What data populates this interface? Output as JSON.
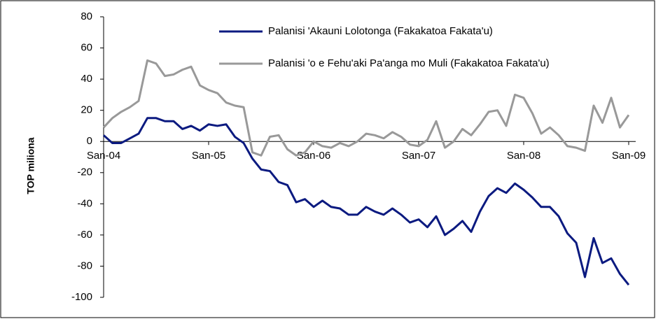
{
  "chart_data": {
    "type": "line",
    "ylabel": "TOP miliona",
    "categories": [
      "San-04",
      null,
      null,
      null,
      null,
      null,
      null,
      null,
      null,
      null,
      null,
      null,
      "San-05",
      null,
      null,
      null,
      null,
      null,
      null,
      null,
      null,
      null,
      null,
      null,
      "San-06",
      null,
      null,
      null,
      null,
      null,
      null,
      null,
      null,
      null,
      null,
      null,
      "San-07",
      null,
      null,
      null,
      null,
      null,
      null,
      null,
      null,
      null,
      null,
      null,
      "San-08",
      null,
      null,
      null,
      null,
      null,
      null,
      null,
      null,
      null,
      null,
      null,
      "San-09"
    ],
    "series": [
      {
        "name": "Palanisi 'Akauni Lolotonga (Fakakatoa Fakata'u)",
        "color": "#0b1a80",
        "values": [
          4,
          -1,
          -1,
          2,
          5,
          15,
          15,
          13,
          13,
          8,
          10,
          7,
          11,
          10,
          11,
          3,
          -1,
          -11,
          -18,
          -19,
          -26,
          -28,
          -39,
          -37,
          -42,
          -38,
          -42,
          -43,
          -47,
          -47,
          -42,
          -45,
          -47,
          -43,
          -47,
          -52,
          -50,
          -55,
          -48,
          -60,
          -56,
          -51,
          -58,
          -45,
          -35,
          -30,
          -33,
          -27,
          -31,
          -36,
          -42,
          -42,
          -48,
          -59,
          -65,
          -87,
          -62,
          -78,
          -75,
          -85,
          -92
        ]
      },
      {
        "name": "Palanisi 'o e Fehu'aki Pa'anga mo Muli (Fakakatoa Fakata'u)",
        "color": "#999999",
        "values": [
          9,
          15,
          19,
          22,
          26,
          52,
          50,
          42,
          43,
          46,
          48,
          36,
          33,
          31,
          25,
          23,
          22,
          -7,
          -9,
          3,
          4,
          -5,
          -9,
          -7,
          0,
          -3,
          -4,
          -1,
          -3,
          0,
          5,
          4,
          2,
          6,
          3,
          -2,
          -3,
          1,
          13,
          -4,
          0,
          8,
          4,
          11,
          19,
          20,
          10,
          30,
          28,
          18,
          5,
          9,
          4,
          -3,
          -4,
          -6,
          23,
          12,
          28,
          9,
          17
        ]
      }
    ],
    "ylim": [
      -100,
      80
    ],
    "yticks": [
      -100,
      -80,
      -60,
      -40,
      -20,
      0,
      20,
      40,
      60,
      80
    ],
    "grid": false
  }
}
